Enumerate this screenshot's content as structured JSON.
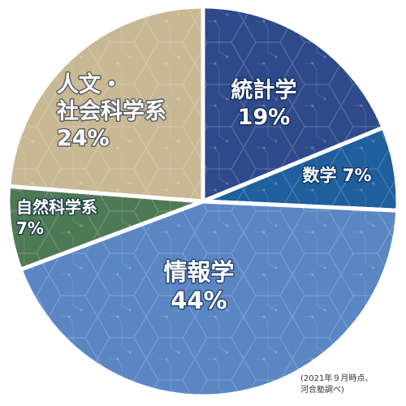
{
  "chart_data": {
    "type": "pie",
    "start_angle_deg": 0,
    "direction": "clockwise",
    "slices": [
      {
        "label_lines": [
          "統計学"
        ],
        "value": 19,
        "value_label": "19%",
        "color": "#2f4a8a"
      },
      {
        "label_lines": [
          "数学"
        ],
        "value": 7,
        "value_label": "7%",
        "color": "#1f5f9e"
      },
      {
        "label_lines": [
          "情報学"
        ],
        "value": 44,
        "value_label": "44%",
        "color": "#5b86c4"
      },
      {
        "label_lines": [
          "自然科学系"
        ],
        "value": 7,
        "value_label": "7%",
        "color": "#4d7a55"
      },
      {
        "label_lines": [
          "人文・",
          "社会科学系"
        ],
        "value": 24,
        "value_label": "24%",
        "color": "#c9b894"
      }
    ]
  },
  "source_note": {
    "line1": "(2021年９月時点、",
    "line2": "河合塾調べ)"
  }
}
